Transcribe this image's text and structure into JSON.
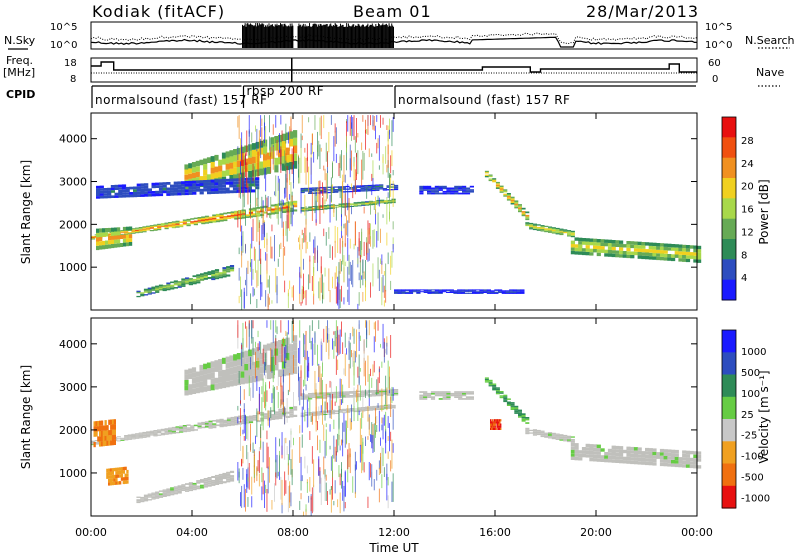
{
  "header": {
    "site": "Kodiak (fitACF)",
    "beam": "Beam 01",
    "date": "28/Mar/2013"
  },
  "panels": {
    "nsky_label": "N.Sky",
    "nsearch_label": "N.Search",
    "noise_ticks": [
      "10^5",
      "10^0"
    ],
    "freq_label": "Freq.",
    "freq_unit": "[MHz]",
    "freq_ticks": [
      "18",
      "8"
    ],
    "nave_label": "Nave",
    "nave_ticks": [
      "60",
      "0"
    ],
    "cpid_label": "CPID"
  },
  "cpid_segments": [
    {
      "name": "normalsound (fast) 157 RF",
      "start_h": 0,
      "end_h": 6
    },
    {
      "name": "rbsp 200 RF",
      "start_h": 6,
      "end_h": 12
    },
    {
      "name": "normalsound (fast) 157 RF",
      "start_h": 12,
      "end_h": 24
    }
  ],
  "colors": {
    "power_scale": [
      "#1a1aff",
      "#2d4dbf",
      "#2e8b57",
      "#66aa55",
      "#a8d84a",
      "#f0d020",
      "#f09020",
      "#f05010",
      "#e81010"
    ],
    "velocity_scale": [
      "#1a1aff",
      "#2d4dbf",
      "#2e8b57",
      "#66cc44",
      "#c8c8c8",
      "#f0a020",
      "#f07010",
      "#e81010"
    ],
    "ground_scatter": "#c0c0bc"
  },
  "chart_data": [
    {
      "type": "heatmap",
      "name": "power",
      "ylabel": "Slant Range [km]",
      "yticks": [
        "1000",
        "2000",
        "3000",
        "4000"
      ],
      "ylim": [
        0,
        4600
      ],
      "xlim_hours": [
        0,
        24
      ],
      "colorbar_label": "Power [dB]",
      "colorbar_ticks": [
        "4",
        "8",
        "12",
        "16",
        "20",
        "24",
        "28"
      ],
      "colorbar_range": [
        0,
        32
      ],
      "bands": [
        {
          "t": [
            0,
            8
          ],
          "r0": [
            1650,
            2300
          ],
          "r1": [
            1750,
            2550
          ],
          "level": 0.62
        },
        {
          "t": [
            8.3,
            11.9
          ],
          "r0": [
            2300,
            2500
          ],
          "r1": [
            2400,
            2600
          ],
          "level": 0.4
        },
        {
          "t": [
            3.7,
            8
          ],
          "r0": [
            2800,
            3300
          ],
          "r1": [
            3400,
            4200
          ],
          "level": 0.55
        },
        {
          "t": [
            0.2,
            6.5
          ],
          "r0": [
            2600,
            2750
          ],
          "r1": [
            2900,
            3100
          ],
          "level": 0.1
        },
        {
          "t": [
            8.3,
            12
          ],
          "r0": [
            2700,
            2800
          ],
          "r1": [
            2850,
            2950
          ],
          "level": 0.12
        },
        {
          "t": [
            1.8,
            5.5
          ],
          "r0": [
            300,
            800
          ],
          "r1": [
            450,
            1050
          ],
          "level": 0.35
        },
        {
          "t": [
            15.6,
            17.2
          ],
          "r0": [
            3100,
            2100
          ],
          "r1": [
            3250,
            2300
          ],
          "level": 0.55
        },
        {
          "t": [
            17.2,
            19
          ],
          "r0": [
            1900,
            1700
          ],
          "r1": [
            2050,
            1850
          ],
          "level": 0.45
        },
        {
          "t": [
            19,
            24
          ],
          "r0": [
            1300,
            1100
          ],
          "r1": [
            1700,
            1500
          ],
          "level": 0.45
        },
        {
          "t": [
            13,
            15
          ],
          "r0": [
            2700,
            2700
          ],
          "r1": [
            2900,
            2900
          ],
          "level": 0.08
        },
        {
          "t": [
            12,
            17
          ],
          "r0": [
            380,
            380
          ],
          "r1": [
            480,
            480
          ],
          "level": 0.05
        },
        {
          "t": [
            0.2,
            1.5
          ],
          "r0": [
            1400,
            1500
          ],
          "r1": [
            1900,
            1950
          ],
          "level": 0.55
        }
      ],
      "noise_columns_hours": [
        [
          5.8,
          8
        ],
        [
          8.2,
          12
        ]
      ]
    },
    {
      "type": "heatmap",
      "name": "velocity",
      "ylabel": "Slant Range [km]",
      "yticks": [
        "1000",
        "2000",
        "3000",
        "4000"
      ],
      "ylim": [
        0,
        4600
      ],
      "xlim_hours": [
        0,
        24
      ],
      "xlabel": "Time UT",
      "xticks": [
        "00:00",
        "04:00",
        "08:00",
        "12:00",
        "16:00",
        "20:00",
        "00:00"
      ],
      "colorbar_label": "Velocity [m s⁻¹]",
      "colorbar_ticks": [
        "1000",
        "500",
        "100",
        "25",
        "-25",
        "-100",
        "-500",
        "-1000"
      ],
      "bands": [
        {
          "t": [
            0,
            8
          ],
          "r0": [
            1650,
            2300
          ],
          "r1": [
            1750,
            2550
          ],
          "level": 0.5
        },
        {
          "t": [
            8.3,
            11.9
          ],
          "r0": [
            2300,
            2500
          ],
          "r1": [
            2400,
            2600
          ],
          "level": 0.5
        },
        {
          "t": [
            3.7,
            8
          ],
          "r0": [
            2800,
            3300
          ],
          "r1": [
            3400,
            4200
          ],
          "level": 0.5
        },
        {
          "t": [
            8.3,
            12
          ],
          "r0": [
            2700,
            2800
          ],
          "r1": [
            2850,
            2950
          ],
          "level": 0.5
        },
        {
          "t": [
            1.8,
            5.5
          ],
          "r0": [
            300,
            800
          ],
          "r1": [
            450,
            1050
          ],
          "level": 0.5
        },
        {
          "t": [
            15.6,
            17.2
          ],
          "r0": [
            3100,
            2100
          ],
          "r1": [
            3250,
            2300
          ],
          "level": 0.35
        },
        {
          "t": [
            17.2,
            19
          ],
          "r0": [
            1900,
            1700
          ],
          "r1": [
            2050,
            1850
          ],
          "level": 0.5
        },
        {
          "t": [
            19,
            24
          ],
          "r0": [
            1300,
            1100
          ],
          "r1": [
            1700,
            1500
          ],
          "level": 0.5
        },
        {
          "t": [
            13,
            15
          ],
          "r0": [
            2700,
            2700
          ],
          "r1": [
            2900,
            2900
          ],
          "level": 0.5
        },
        {
          "t": [
            0.1,
            0.9
          ],
          "r0": [
            1600,
            1650
          ],
          "r1": [
            2200,
            2250
          ],
          "level": 0.8
        },
        {
          "t": [
            0.6,
            1.4
          ],
          "r0": [
            700,
            750
          ],
          "r1": [
            1100,
            1150
          ],
          "level": 0.75
        },
        {
          "t": [
            15.8,
            16.2
          ],
          "r0": [
            2000,
            2000
          ],
          "r1": [
            2250,
            2250
          ],
          "level": 0.95
        }
      ],
      "noise_columns_hours": [
        [
          5.8,
          8
        ],
        [
          8.2,
          12
        ]
      ]
    }
  ]
}
